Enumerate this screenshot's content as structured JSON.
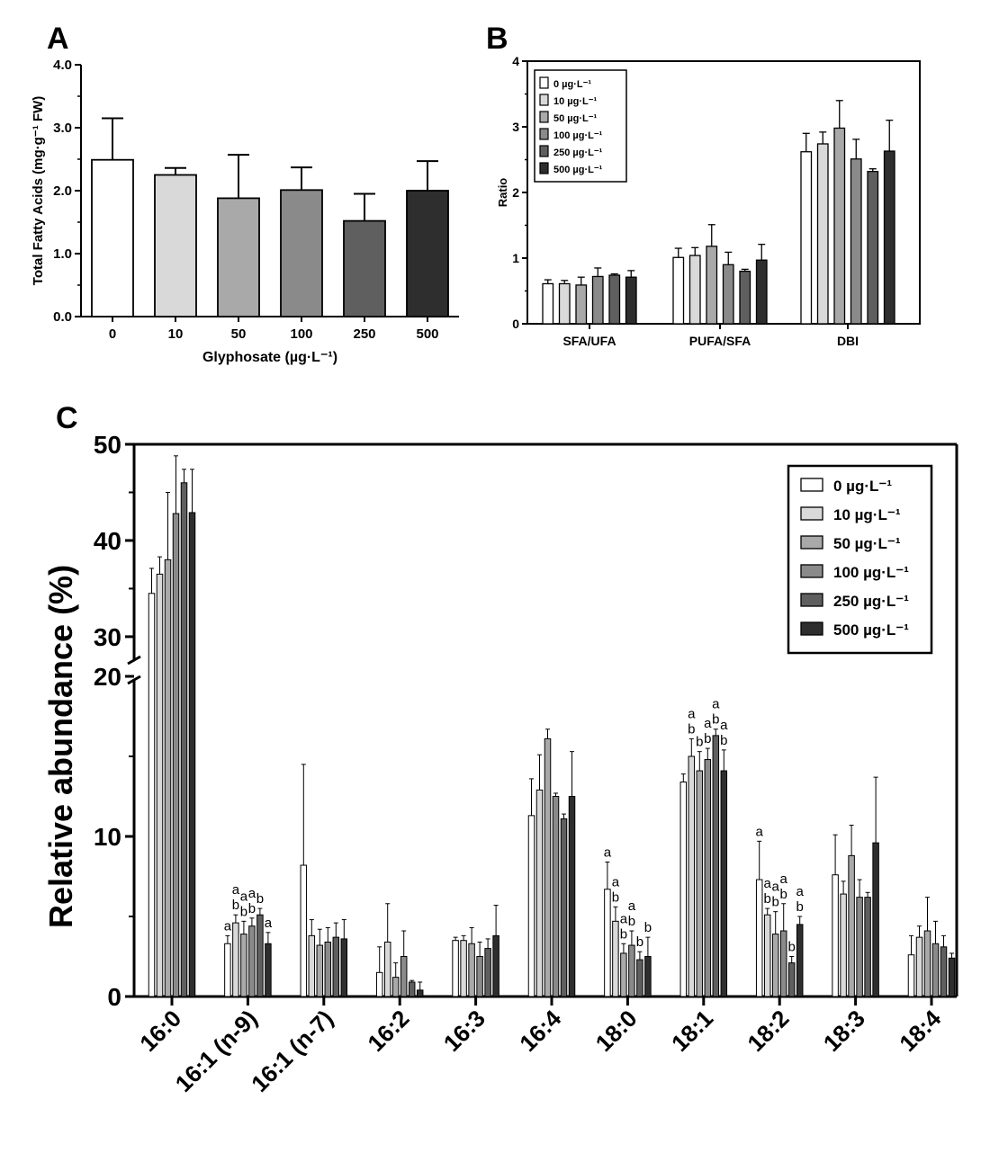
{
  "chart_data": [
    {
      "panel": "A",
      "type": "bar",
      "title": "",
      "xlabel": "Glyphosate (µg·L⁻¹)",
      "ylabel": "Total Fatty Acids (mg·g⁻¹ FW)",
      "categories": [
        "0",
        "10",
        "50",
        "100",
        "250",
        "500"
      ],
      "values": [
        2.49,
        2.25,
        1.88,
        2.01,
        1.52,
        2.0
      ],
      "errors": [
        0.66,
        0.11,
        0.69,
        0.36,
        0.43,
        0.47
      ],
      "ylim": [
        0,
        4
      ],
      "yticks": [
        "0.0",
        "1.0",
        "2.0",
        "3.0",
        "4.0"
      ],
      "colors": [
        "#ffffff",
        "#d9d9d9",
        "#a9a9a9",
        "#8a8a8a",
        "#5f5f5f",
        "#2e2e2e"
      ],
      "grid": false,
      "legend": "none"
    },
    {
      "panel": "B",
      "type": "bar",
      "title": "",
      "xlabel": "",
      "ylabel": "Ratio",
      "categories": [
        "SFA/UFA",
        "PUFA/SFA",
        "DBI"
      ],
      "ylim": [
        0,
        4
      ],
      "yticks": [
        "0",
        "1",
        "2",
        "3",
        "4"
      ],
      "legend": "top-left",
      "grid": false,
      "series": [
        {
          "name": "0 µg·L⁻¹",
          "color": "#ffffff",
          "values": [
            0.61,
            1.01,
            2.62
          ],
          "errors": [
            0.06,
            0.14,
            0.28
          ]
        },
        {
          "name": "10 µg·L⁻¹",
          "color": "#d9d9d9",
          "values": [
            0.61,
            1.04,
            2.74
          ],
          "errors": [
            0.05,
            0.12,
            0.18
          ]
        },
        {
          "name": "50 µg·L⁻¹",
          "color": "#a9a9a9",
          "values": [
            0.59,
            1.18,
            2.98
          ],
          "errors": [
            0.12,
            0.33,
            0.42
          ]
        },
        {
          "name": "100 µg·L⁻¹",
          "color": "#8a8a8a",
          "values": [
            0.72,
            0.9,
            2.51
          ],
          "errors": [
            0.13,
            0.19,
            0.3
          ]
        },
        {
          "name": "250 µg·L⁻¹",
          "color": "#5f5f5f",
          "values": [
            0.74,
            0.8,
            2.32
          ],
          "errors": [
            0.02,
            0.03,
            0.04
          ]
        },
        {
          "name": "500 µg·L⁻¹",
          "color": "#2e2e2e",
          "values": [
            0.71,
            0.97,
            2.63
          ],
          "errors": [
            0.1,
            0.24,
            0.47
          ]
        }
      ]
    },
    {
      "panel": "C",
      "type": "bar",
      "title": "",
      "xlabel": "",
      "ylabel": "Relative abundance (%)",
      "categories": [
        "16:0",
        "16:1 (n-9)",
        "16:1 (n-7)",
        "16:2",
        "16:3",
        "16:4",
        "18:0",
        "18:1",
        "18:2",
        "18:3",
        "18:4"
      ],
      "ylim": [
        0,
        50
      ],
      "axis_break": [
        20,
        27
      ],
      "yticks": [
        "0",
        "10",
        "20",
        "30",
        "40",
        "50"
      ],
      "legend": "top-right",
      "grid": false,
      "series": [
        {
          "name": "0 µg·L⁻¹",
          "color": "#ffffff",
          "values": [
            34.5,
            3.3,
            8.2,
            1.5,
            3.5,
            11.3,
            6.7,
            13.4,
            7.3,
            7.6,
            2.6
          ],
          "errors": [
            2.6,
            0.5,
            6.3,
            1.6,
            0.2,
            2.3,
            1.7,
            0.5,
            2.4,
            2.5,
            1.2
          ],
          "letters": [
            "",
            "a",
            "",
            "",
            "",
            "",
            "a",
            "",
            "a",
            "",
            ""
          ]
        },
        {
          "name": "10 µg·L⁻¹",
          "color": "#d9d9d9",
          "values": [
            36.5,
            4.6,
            3.8,
            3.4,
            3.5,
            12.9,
            4.7,
            15.0,
            5.1,
            6.4,
            3.7
          ],
          "errors": [
            1.8,
            0.5,
            1.0,
            2.4,
            0.3,
            2.2,
            0.9,
            1.1,
            0.4,
            0.8,
            0.7
          ],
          "letters": [
            "",
            "ab",
            "",
            "",
            "",
            "",
            "ab",
            "ab",
            "ab",
            "",
            ""
          ]
        },
        {
          "name": "50 µg·L⁻¹",
          "color": "#a9a9a9",
          "values": [
            38.0,
            3.9,
            3.2,
            1.2,
            3.3,
            16.1,
            2.7,
            14.1,
            3.9,
            8.8,
            4.1
          ],
          "errors": [
            7.0,
            0.8,
            1.0,
            0.9,
            1.0,
            0.6,
            0.6,
            1.2,
            1.4,
            1.9,
            2.1
          ],
          "letters": [
            "",
            "ab",
            "",
            "",
            "",
            "",
            "ab",
            "b",
            "ab",
            "",
            ""
          ]
        },
        {
          "name": "100 µg·L⁻¹",
          "color": "#8a8a8a",
          "values": [
            42.8,
            4.4,
            3.4,
            2.5,
            2.5,
            12.5,
            3.2,
            14.8,
            4.1,
            6.2,
            3.3
          ],
          "errors": [
            6.0,
            0.5,
            0.9,
            1.6,
            0.9,
            0.2,
            0.9,
            0.7,
            1.7,
            1.1,
            1.4
          ],
          "letters": [
            "",
            "ab",
            "",
            "",
            "",
            "",
            "ab",
            "ab",
            "ab",
            "",
            ""
          ]
        },
        {
          "name": "250 µg·L⁻¹",
          "color": "#5f5f5f",
          "values": [
            46.0,
            5.1,
            3.7,
            0.9,
            3.0,
            11.1,
            2.3,
            16.3,
            2.1,
            6.2,
            3.1
          ],
          "errors": [
            1.4,
            0.4,
            0.9,
            0.1,
            0.6,
            0.3,
            0.5,
            0.4,
            0.4,
            0.3,
            0.7
          ],
          "letters": [
            "",
            "b",
            "",
            "",
            "",
            "",
            "b",
            "ab",
            "b",
            "",
            ""
          ]
        },
        {
          "name": "500 µg·L⁻¹",
          "color": "#2e2e2e",
          "values": [
            42.9,
            3.3,
            3.6,
            0.4,
            3.8,
            12.5,
            2.5,
            14.1,
            4.5,
            9.6,
            2.4
          ],
          "errors": [
            4.5,
            0.7,
            1.2,
            0.5,
            1.9,
            2.8,
            1.2,
            1.3,
            0.5,
            4.1,
            0.3
          ],
          "letters": [
            "",
            "a",
            "",
            "",
            "",
            "",
            "b",
            "ab",
            "ab",
            "",
            ""
          ]
        }
      ]
    }
  ],
  "panel_labels": {
    "a": "A",
    "b": "B",
    "c": "C"
  }
}
